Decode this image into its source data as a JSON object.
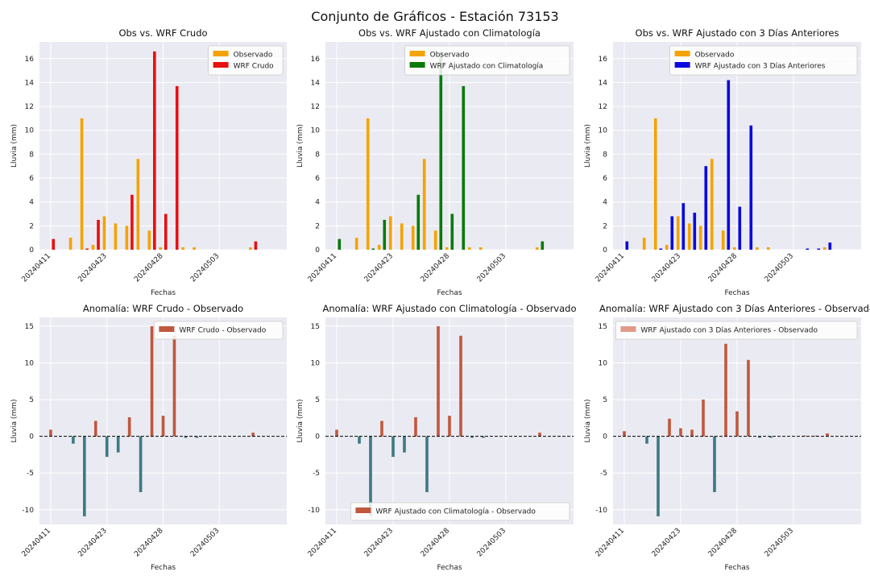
{
  "suptitle": "Conjunto de Gráficos - Estación 73153",
  "colors": {
    "observado": "#f5a300",
    "wrf_crudo": "#e81010",
    "wrf_clima": "#0a7a0a",
    "wrf_3dias": "#0a0ae0",
    "anom_pos": "#c0583e",
    "anom_neg": "#3e7a82",
    "anom_legend_3": "#e29a88",
    "axes_bg": "#eaeaf2",
    "grid": "#ffffff"
  },
  "chart_data": [
    {
      "type": "bar",
      "title": "Obs vs. WRF Crudo",
      "xlabel": "Fechas",
      "ylabel": "Lluvia (mm)",
      "ylim": [
        0,
        17.4
      ],
      "yticks": [
        0,
        2,
        4,
        6,
        8,
        10,
        12,
        14,
        16
      ],
      "x": [
        1,
        2,
        3,
        4,
        5,
        6,
        7,
        8,
        9,
        10,
        11,
        12,
        13,
        14,
        15,
        16,
        17,
        18,
        19,
        20
      ],
      "xtick_positions": [
        1,
        6,
        11,
        16
      ],
      "xtick_labels": [
        "20240411",
        "20240423",
        "20240428",
        "20240503"
      ],
      "legend_position": "upper-right",
      "series": [
        {
          "name": "Observado",
          "color_key": "observado",
          "values": [
            0,
            0,
            1.0,
            11.0,
            0.4,
            2.8,
            2.2,
            2.0,
            7.6,
            1.6,
            0.2,
            0,
            0.2,
            0.2,
            0,
            0,
            0,
            0,
            0.2,
            0
          ]
        },
        {
          "name": "WRF Crudo",
          "color_key": "wrf_crudo",
          "values": [
            0.9,
            0,
            0,
            0.1,
            2.5,
            0,
            0,
            4.6,
            0,
            16.6,
            3.0,
            13.7,
            0,
            0,
            0,
            0,
            0,
            0,
            0.7,
            0
          ]
        }
      ]
    },
    {
      "type": "bar",
      "title": "Obs vs. WRF Ajustado con Climatología",
      "xlabel": "Fechas",
      "ylabel": "Lluvia (mm)",
      "ylim": [
        0,
        17.4
      ],
      "yticks": [
        0,
        2,
        4,
        6,
        8,
        10,
        12,
        14,
        16
      ],
      "x": [
        1,
        2,
        3,
        4,
        5,
        6,
        7,
        8,
        9,
        10,
        11,
        12,
        13,
        14,
        15,
        16,
        17,
        18,
        19,
        20
      ],
      "xtick_positions": [
        1,
        6,
        11,
        16
      ],
      "xtick_labels": [
        "20240411",
        "20240423",
        "20240428",
        "20240503"
      ],
      "legend_position": "upper-right",
      "series": [
        {
          "name": "Observado",
          "color_key": "observado",
          "values": [
            0,
            0,
            1.0,
            11.0,
            0.4,
            2.8,
            2.2,
            2.0,
            7.6,
            1.6,
            0.2,
            0,
            0.2,
            0.2,
            0,
            0,
            0,
            0,
            0.2,
            0
          ]
        },
        {
          "name": "WRF Ajustado con Climatología",
          "color_key": "wrf_clima",
          "values": [
            0.9,
            0,
            0,
            0.1,
            2.5,
            0,
            0,
            4.6,
            0,
            16.6,
            3.0,
            13.7,
            0,
            0,
            0,
            0,
            0,
            0,
            0.7,
            0
          ]
        }
      ]
    },
    {
      "type": "bar",
      "title": "Obs vs. WRF Ajustado con 3 Días Anteriores",
      "xlabel": "Fechas",
      "ylabel": "Lluvia (mm)",
      "ylim": [
        0,
        17.4
      ],
      "yticks": [
        0,
        2,
        4,
        6,
        8,
        10,
        12,
        14,
        16
      ],
      "x": [
        1,
        2,
        3,
        4,
        5,
        6,
        7,
        8,
        9,
        10,
        11,
        12,
        13,
        14,
        15,
        16,
        17,
        18,
        19,
        20
      ],
      "xtick_positions": [
        1,
        6,
        11,
        16
      ],
      "xtick_labels": [
        "20240411",
        "20240423",
        "20240428",
        "20240503"
      ],
      "legend_position": "upper-right",
      "series": [
        {
          "name": "Observado",
          "color_key": "observado",
          "values": [
            0,
            0,
            1.0,
            11.0,
            0.4,
            2.8,
            2.2,
            2.0,
            7.6,
            1.6,
            0.2,
            0,
            0.2,
            0.2,
            0,
            0,
            0,
            0,
            0.2,
            0
          ]
        },
        {
          "name": "WRF Ajustado con 3 Días Anteriores",
          "color_key": "wrf_3dias",
          "values": [
            0.7,
            0,
            0,
            0.1,
            2.8,
            3.9,
            3.1,
            7.0,
            0,
            14.2,
            3.6,
            10.4,
            0,
            0,
            0,
            0,
            0.1,
            0.1,
            0.6,
            0
          ]
        }
      ]
    },
    {
      "type": "bar",
      "title": "Anomalía: WRF Crudo - Observado",
      "xlabel": "Fechas",
      "ylabel": "Lluvia (mm)",
      "ylim": [
        -12,
        16.2
      ],
      "yticks": [
        -10,
        -5,
        0,
        5,
        10,
        15
      ],
      "x": [
        1,
        2,
        3,
        4,
        5,
        6,
        7,
        8,
        9,
        10,
        11,
        12,
        13,
        14,
        15,
        16,
        17,
        18,
        19,
        20
      ],
      "xtick_positions": [
        1,
        6,
        11,
        16
      ],
      "xtick_labels": [
        "20240411",
        "20240423",
        "20240428",
        "20240503"
      ],
      "zero_line": true,
      "legend_position": "upper-right",
      "legend_color_key": "anom_pos",
      "series": [
        {
          "name": "WRF Crudo - Observado",
          "values": [
            0.9,
            0,
            -1.0,
            -10.9,
            2.1,
            -2.8,
            -2.2,
            2.6,
            -7.6,
            15.0,
            2.8,
            13.7,
            -0.2,
            -0.2,
            0,
            0,
            0,
            0,
            0.5,
            0
          ]
        }
      ]
    },
    {
      "type": "bar",
      "title": "Anomalía: WRF Ajustado con Climatología - Observado",
      "xlabel": "Fechas",
      "ylabel": "Lluvia (mm)",
      "ylim": [
        -12,
        16.2
      ],
      "yticks": [
        -10,
        -5,
        0,
        5,
        10,
        15
      ],
      "x": [
        1,
        2,
        3,
        4,
        5,
        6,
        7,
        8,
        9,
        10,
        11,
        12,
        13,
        14,
        15,
        16,
        17,
        18,
        19,
        20
      ],
      "xtick_positions": [
        1,
        6,
        11,
        16
      ],
      "xtick_labels": [
        "20240411",
        "20240423",
        "20240428",
        "20240503"
      ],
      "zero_line": true,
      "legend_position": "lower-right",
      "legend_color_key": "anom_pos",
      "series": [
        {
          "name": "WRF Ajustado con Climatología - Observado",
          "values": [
            0.9,
            0,
            -1.0,
            -10.9,
            2.1,
            -2.8,
            -2.2,
            2.6,
            -7.6,
            15.0,
            2.8,
            13.7,
            -0.2,
            -0.2,
            0,
            0,
            0,
            0,
            0.5,
            0
          ]
        }
      ]
    },
    {
      "type": "bar",
      "title": "Anomalía: WRF Ajustado con 3 Días Anteriores - Observado",
      "xlabel": "Fechas",
      "ylabel": "Lluvia (mm)",
      "ylim": [
        -12,
        16.2
      ],
      "yticks": [
        -10,
        -5,
        0,
        5,
        10,
        15
      ],
      "x": [
        1,
        2,
        3,
        4,
        5,
        6,
        7,
        8,
        9,
        10,
        11,
        12,
        13,
        14,
        15,
        16,
        17,
        18,
        19,
        20
      ],
      "xtick_positions": [
        1,
        6,
        11,
        16
      ],
      "xtick_labels": [
        "20240411",
        "20240423",
        "20240428",
        "20240503"
      ],
      "zero_line": true,
      "legend_position": "upper-right",
      "legend_color_key": "anom_legend_3",
      "series": [
        {
          "name": "WRF Ajustado con 3 Días Anteriores - Observado",
          "values": [
            0.7,
            0,
            -1.0,
            -10.9,
            2.4,
            1.1,
            0.9,
            5.0,
            -7.6,
            12.6,
            3.4,
            10.4,
            -0.2,
            -0.2,
            0,
            0,
            0.1,
            0.1,
            0.4,
            0
          ]
        }
      ]
    }
  ]
}
